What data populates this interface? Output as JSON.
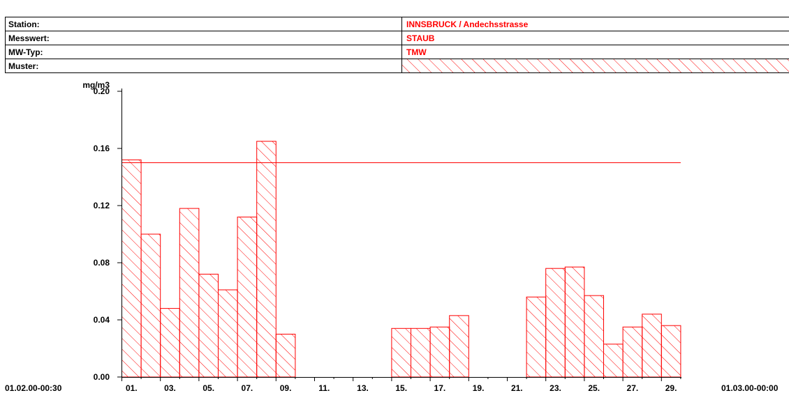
{
  "header": {
    "rows": [
      {
        "label": "Station:",
        "value": "INNSBRUCK / Andechsstrasse"
      },
      {
        "label": "Messwert:",
        "value": "STAUB"
      },
      {
        "label": "MW-Typ:",
        "value": "TMW"
      },
      {
        "label": "Muster:",
        "value": ""
      }
    ]
  },
  "colors": {
    "series": "#ff0000",
    "text": "#000000",
    "axis": "#000000"
  },
  "chart_data": {
    "type": "bar",
    "title": "",
    "xlabel": "",
    "ylabel": "mg/m3",
    "ylim": [
      0,
      0.2
    ],
    "yticks": [
      "0.00",
      "0.04",
      "0.08",
      "0.12",
      "0.16",
      "0.20"
    ],
    "x_start_label": "01.02.00-00:30",
    "x_end_label": "01.03.00-00:00",
    "xtick_labels": [
      "01.",
      "03.",
      "05.",
      "07.",
      "09.",
      "11.",
      "13.",
      "15.",
      "17.",
      "19.",
      "21.",
      "23.",
      "25.",
      "27.",
      "29."
    ],
    "categories": [
      "01",
      "02",
      "03",
      "04",
      "05",
      "06",
      "07",
      "08",
      "09",
      "10",
      "11",
      "12",
      "13",
      "14",
      "15",
      "16",
      "17",
      "18",
      "19",
      "20",
      "21",
      "22",
      "23",
      "24",
      "25",
      "26",
      "27",
      "28",
      "29"
    ],
    "series": [
      {
        "values": [
          0.152,
          0.1,
          0.048,
          0.118,
          0.072,
          0.061,
          0.112,
          0.165,
          0.03,
          null,
          null,
          null,
          null,
          null,
          0.034,
          0.034,
          0.035,
          0.043,
          null,
          null,
          null,
          0.056,
          0.076,
          0.077,
          0.057,
          0.023,
          0.035,
          0.044,
          0.036
        ],
        "pattern": "diagonal-hatch"
      }
    ],
    "limit_line": {
      "value": 0.15
    },
    "grid": false
  }
}
